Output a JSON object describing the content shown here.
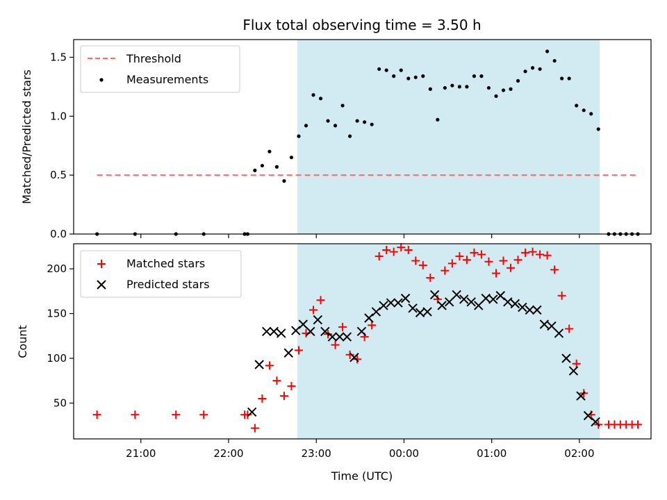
{
  "chart_data": [
    {
      "type": "scatter",
      "title": "Flux total observing time = 3.50 h",
      "xlabel": "",
      "ylabel": "Matched/Predicted stars",
      "ylim": [
        0,
        1.65
      ],
      "yticks": [
        "0.0",
        "0.5",
        "1.0",
        "1.5"
      ],
      "grid": false,
      "legend_position": "top-left",
      "shaded_interval": {
        "start": "22:47",
        "end": "02:14",
        "color": "#add8e6"
      },
      "threshold": {
        "name": "Threshold",
        "value": 0.5,
        "x_start": "20:30",
        "x_end": "02:40",
        "style": "dashed",
        "color": "#ff6b6b"
      },
      "series": [
        {
          "name": "Measurements",
          "color": "#000000",
          "marker": "dot",
          "x": [
            "20:30",
            "20:56",
            "21:24",
            "21:43",
            "22:11",
            "22:13",
            "22:18",
            "22:23",
            "22:28",
            "22:33",
            "22:38",
            "22:43",
            "22:48",
            "22:53",
            "22:58",
            "23:03",
            "23:08",
            "23:13",
            "23:18",
            "23:23",
            "23:28",
            "23:33",
            "23:38",
            "23:43",
            "23:48",
            "23:53",
            "23:58",
            "00:03",
            "00:08",
            "00:13",
            "00:18",
            "00:23",
            "00:28",
            "00:33",
            "00:38",
            "00:43",
            "00:48",
            "00:53",
            "00:58",
            "01:03",
            "01:08",
            "01:13",
            "01:18",
            "01:23",
            "01:28",
            "01:33",
            "01:38",
            "01:43",
            "01:48",
            "01:53",
            "01:58",
            "02:03",
            "02:08",
            "02:13",
            "02:20",
            "02:24",
            "02:28",
            "02:32",
            "02:36",
            "02:40"
          ],
          "y": [
            0.0,
            0.0,
            0.0,
            0.0,
            0.0,
            0.0,
            0.54,
            0.58,
            0.7,
            0.57,
            0.45,
            0.65,
            0.83,
            0.92,
            1.18,
            1.15,
            0.96,
            0.92,
            1.09,
            0.83,
            0.96,
            0.95,
            0.93,
            1.4,
            1.39,
            1.34,
            1.39,
            1.32,
            1.33,
            1.34,
            1.23,
            0.97,
            1.24,
            1.26,
            1.25,
            1.25,
            1.34,
            1.34,
            1.24,
            1.17,
            1.22,
            1.23,
            1.3,
            1.38,
            1.41,
            1.4,
            1.55,
            1.47,
            1.32,
            1.32,
            1.09,
            1.05,
            1.02,
            0.89,
            0.0,
            0.0,
            0.0,
            0.0,
            0.0,
            0.0
          ]
        }
      ]
    },
    {
      "type": "scatter",
      "title": "",
      "xlabel": "Time (UTC)",
      "ylabel": "Count",
      "ylim": [
        10,
        228
      ],
      "yticks": [
        "50",
        "100",
        "150",
        "200"
      ],
      "xticks": [
        "21:00",
        "22:00",
        "23:00",
        "00:00",
        "01:00",
        "02:00"
      ],
      "grid": false,
      "legend_position": "top-left",
      "shaded_interval": {
        "start": "22:47",
        "end": "02:14",
        "color": "#add8e6"
      },
      "series": [
        {
          "name": "Matched stars",
          "color": "#ff0000",
          "marker": "plus",
          "x": [
            "20:30",
            "20:56",
            "21:24",
            "21:43",
            "22:11",
            "22:13",
            "22:18",
            "22:23",
            "22:28",
            "22:33",
            "22:38",
            "22:43",
            "22:48",
            "22:53",
            "22:58",
            "23:03",
            "23:08",
            "23:13",
            "23:18",
            "23:23",
            "23:28",
            "23:33",
            "23:38",
            "23:43",
            "23:48",
            "23:53",
            "23:58",
            "00:03",
            "00:08",
            "00:13",
            "00:18",
            "00:23",
            "00:28",
            "00:33",
            "00:38",
            "00:43",
            "00:48",
            "00:53",
            "00:58",
            "01:03",
            "01:08",
            "01:13",
            "01:18",
            "01:23",
            "01:28",
            "01:33",
            "01:38",
            "01:43",
            "01:48",
            "01:53",
            "01:58",
            "02:03",
            "02:08",
            "02:13",
            "02:20",
            "02:24",
            "02:28",
            "02:32",
            "02:36",
            "02:40"
          ],
          "y": [
            37,
            37,
            37,
            37,
            37,
            37,
            22,
            55,
            92,
            75,
            58,
            69,
            109,
            128,
            154,
            165,
            127,
            115,
            135,
            104,
            99,
            124,
            137,
            214,
            221,
            219,
            224,
            221,
            209,
            204,
            190,
            166,
            198,
            206,
            214,
            210,
            218,
            216,
            208,
            195,
            209,
            201,
            210,
            218,
            219,
            216,
            215,
            199,
            170,
            133,
            94,
            61,
            37,
            26,
            26,
            26,
            26,
            26,
            26,
            26
          ]
        },
        {
          "name": "Predicted stars",
          "color": "#000000",
          "marker": "x",
          "x": [
            "22:16",
            "22:21",
            "22:26",
            "22:31",
            "22:36",
            "22:41",
            "22:46",
            "22:51",
            "22:56",
            "23:01",
            "23:06",
            "23:11",
            "23:16",
            "23:21",
            "23:26",
            "23:31",
            "23:36",
            "23:41",
            "23:46",
            "23:51",
            "23:56",
            "00:01",
            "00:06",
            "00:11",
            "00:16",
            "00:21",
            "00:26",
            "00:31",
            "00:36",
            "00:41",
            "00:46",
            "00:51",
            "00:56",
            "01:01",
            "01:06",
            "01:11",
            "01:16",
            "01:21",
            "01:26",
            "01:31",
            "01:36",
            "01:41",
            "01:46",
            "01:51",
            "01:56",
            "02:01",
            "02:06",
            "02:11"
          ],
          "y": [
            40,
            93,
            130,
            130,
            128,
            106,
            131,
            138,
            130,
            143,
            130,
            124,
            124,
            124,
            101,
            130,
            145,
            152,
            159,
            162,
            162,
            167,
            156,
            151,
            152,
            171,
            159,
            163,
            171,
            166,
            163,
            159,
            167,
            166,
            170,
            163,
            161,
            157,
            154,
            154,
            138,
            136,
            128,
            100,
            86,
            58,
            36,
            29
          ]
        }
      ]
    }
  ]
}
